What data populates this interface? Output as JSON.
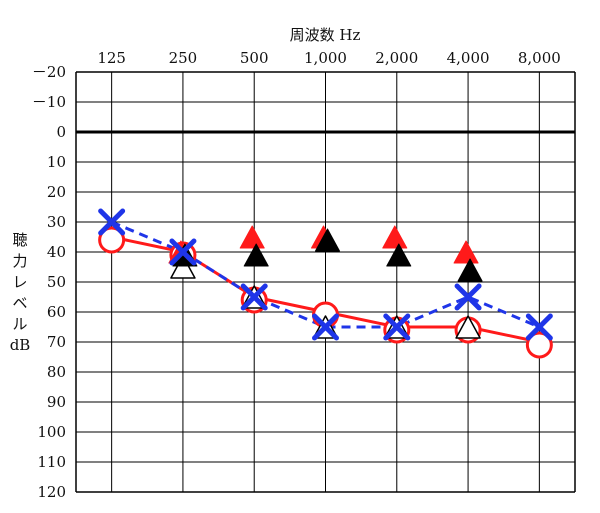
{
  "chart_data": {
    "type": "line",
    "title": "",
    "xlabel": "周波数 Hz",
    "ylabel_lines": [
      "聴",
      "力",
      "レ",
      "ベ",
      "ル",
      "dB"
    ],
    "x_categories": [
      "125",
      "250",
      "500",
      "1,000",
      "2,000",
      "4,000",
      "8,000"
    ],
    "y_ticks": [
      "－20",
      "－10",
      "0",
      "10",
      "20",
      "30",
      "40",
      "50",
      "60",
      "70",
      "80",
      "90",
      "100",
      "110",
      "120"
    ],
    "y_tick_values": [
      -20,
      -10,
      0,
      10,
      20,
      30,
      40,
      50,
      60,
      70,
      80,
      90,
      100,
      110,
      120
    ],
    "ylim": [
      -20,
      120
    ],
    "y_inverted": true,
    "grid": true,
    "reference_line": 0,
    "colors": {
      "red": "#ff1a1a",
      "blue": "#1f35e8",
      "black": "#000000",
      "grid": "#000000"
    },
    "series": [
      {
        "marker": "red-circle",
        "line": "solid-red",
        "values": [
          35,
          40,
          55,
          60,
          65,
          65,
          70
        ]
      },
      {
        "marker": "blue-x",
        "line": "dashed-blue",
        "values": [
          30,
          40,
          55,
          65,
          65,
          55,
          65
        ]
      },
      {
        "marker": "white-triangle",
        "line": "none",
        "values": [
          null,
          45,
          55,
          65,
          65,
          65,
          null
        ]
      },
      {
        "marker": "red-triangle",
        "line": "none",
        "values": [
          null,
          40,
          35,
          35,
          35,
          40,
          null
        ]
      },
      {
        "marker": "black-triangle",
        "line": "none",
        "values": [
          null,
          40,
          40,
          35,
          40,
          45,
          null
        ]
      }
    ]
  }
}
